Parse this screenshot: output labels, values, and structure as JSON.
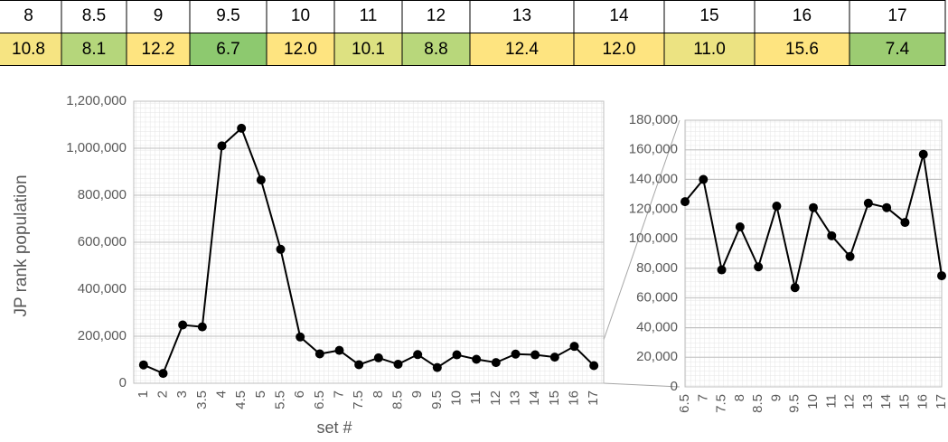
{
  "table": {
    "header": [
      "8",
      "8.5",
      "9",
      "9.5",
      "10",
      "11",
      "12",
      "13",
      "14",
      "15",
      "16",
      "17"
    ],
    "rows": [
      [
        "10.8",
        "8.1",
        "12.2",
        "6.7",
        "12.0",
        "10.1",
        "8.8",
        "12.4",
        "12.0",
        "11.0",
        "15.6",
        "7.4"
      ]
    ],
    "cell_colors": [
      "#f6e482",
      "#b5d67b",
      "#fee480",
      "#8dc96f",
      "#fee480",
      "#dde181",
      "#b8d77b",
      "#fee480",
      "#fee480",
      "#ece382",
      "#fee480",
      "#9ccc72"
    ]
  },
  "chart_data": [
    {
      "type": "line",
      "y_label": "JP rank population",
      "x_label": "set #",
      "categories": [
        "1",
        "2",
        "3",
        "3.5",
        "4",
        "4.5",
        "5",
        "5.5",
        "6",
        "6.5",
        "7",
        "7.5",
        "8",
        "8.5",
        "9",
        "9.5",
        "10",
        "11",
        "12",
        "13",
        "14",
        "15",
        "16",
        "17"
      ],
      "values": [
        78000,
        42000,
        248000,
        240000,
        1010000,
        1085000,
        865000,
        570000,
        197000,
        125000,
        140000,
        79000,
        108000,
        81000,
        122000,
        67000,
        121000,
        102000,
        88000,
        124000,
        121000,
        111000,
        157000,
        75000
      ],
      "color": "#000000",
      "ylim": [
        0,
        1200000
      ],
      "yticks": [
        0,
        {
          "value": 200000,
          "label": "200,000"
        },
        {
          "value": 400000,
          "label": "400,000"
        },
        {
          "value": 600000,
          "label": "600,000"
        },
        {
          "value": 800000,
          "label": "800,000"
        },
        {
          "value": 1000000,
          "label": "1,000,000"
        },
        {
          "value": 1200000,
          "label": "1,200,000"
        }
      ],
      "grid": true
    },
    {
      "type": "line",
      "categories": [
        "6.5",
        "7",
        "7.5",
        "8",
        "8.5",
        "9",
        "9.5",
        "10",
        "11",
        "12",
        "13",
        "14",
        "15",
        "16",
        "17"
      ],
      "values": [
        125000,
        140000,
        79000,
        108000,
        81000,
        122000,
        67000,
        121000,
        102000,
        88000,
        124000,
        121000,
        111000,
        157000,
        75000
      ],
      "color": "#000000",
      "ylim": [
        0,
        180000
      ],
      "yticks": [
        0,
        {
          "value": 20000,
          "label": "20,000"
        },
        {
          "value": 40000,
          "label": "40,000"
        },
        {
          "value": 60000,
          "label": "60,000"
        },
        {
          "value": 80000,
          "label": "80,000"
        },
        {
          "value": 100000,
          "label": "100,000"
        },
        {
          "value": 120000,
          "label": "120,000"
        },
        {
          "value": 140000,
          "label": "140,000"
        },
        {
          "value": 160000,
          "label": "160,000"
        },
        {
          "value": 180000,
          "label": "180,000"
        }
      ],
      "grid": true
    }
  ]
}
